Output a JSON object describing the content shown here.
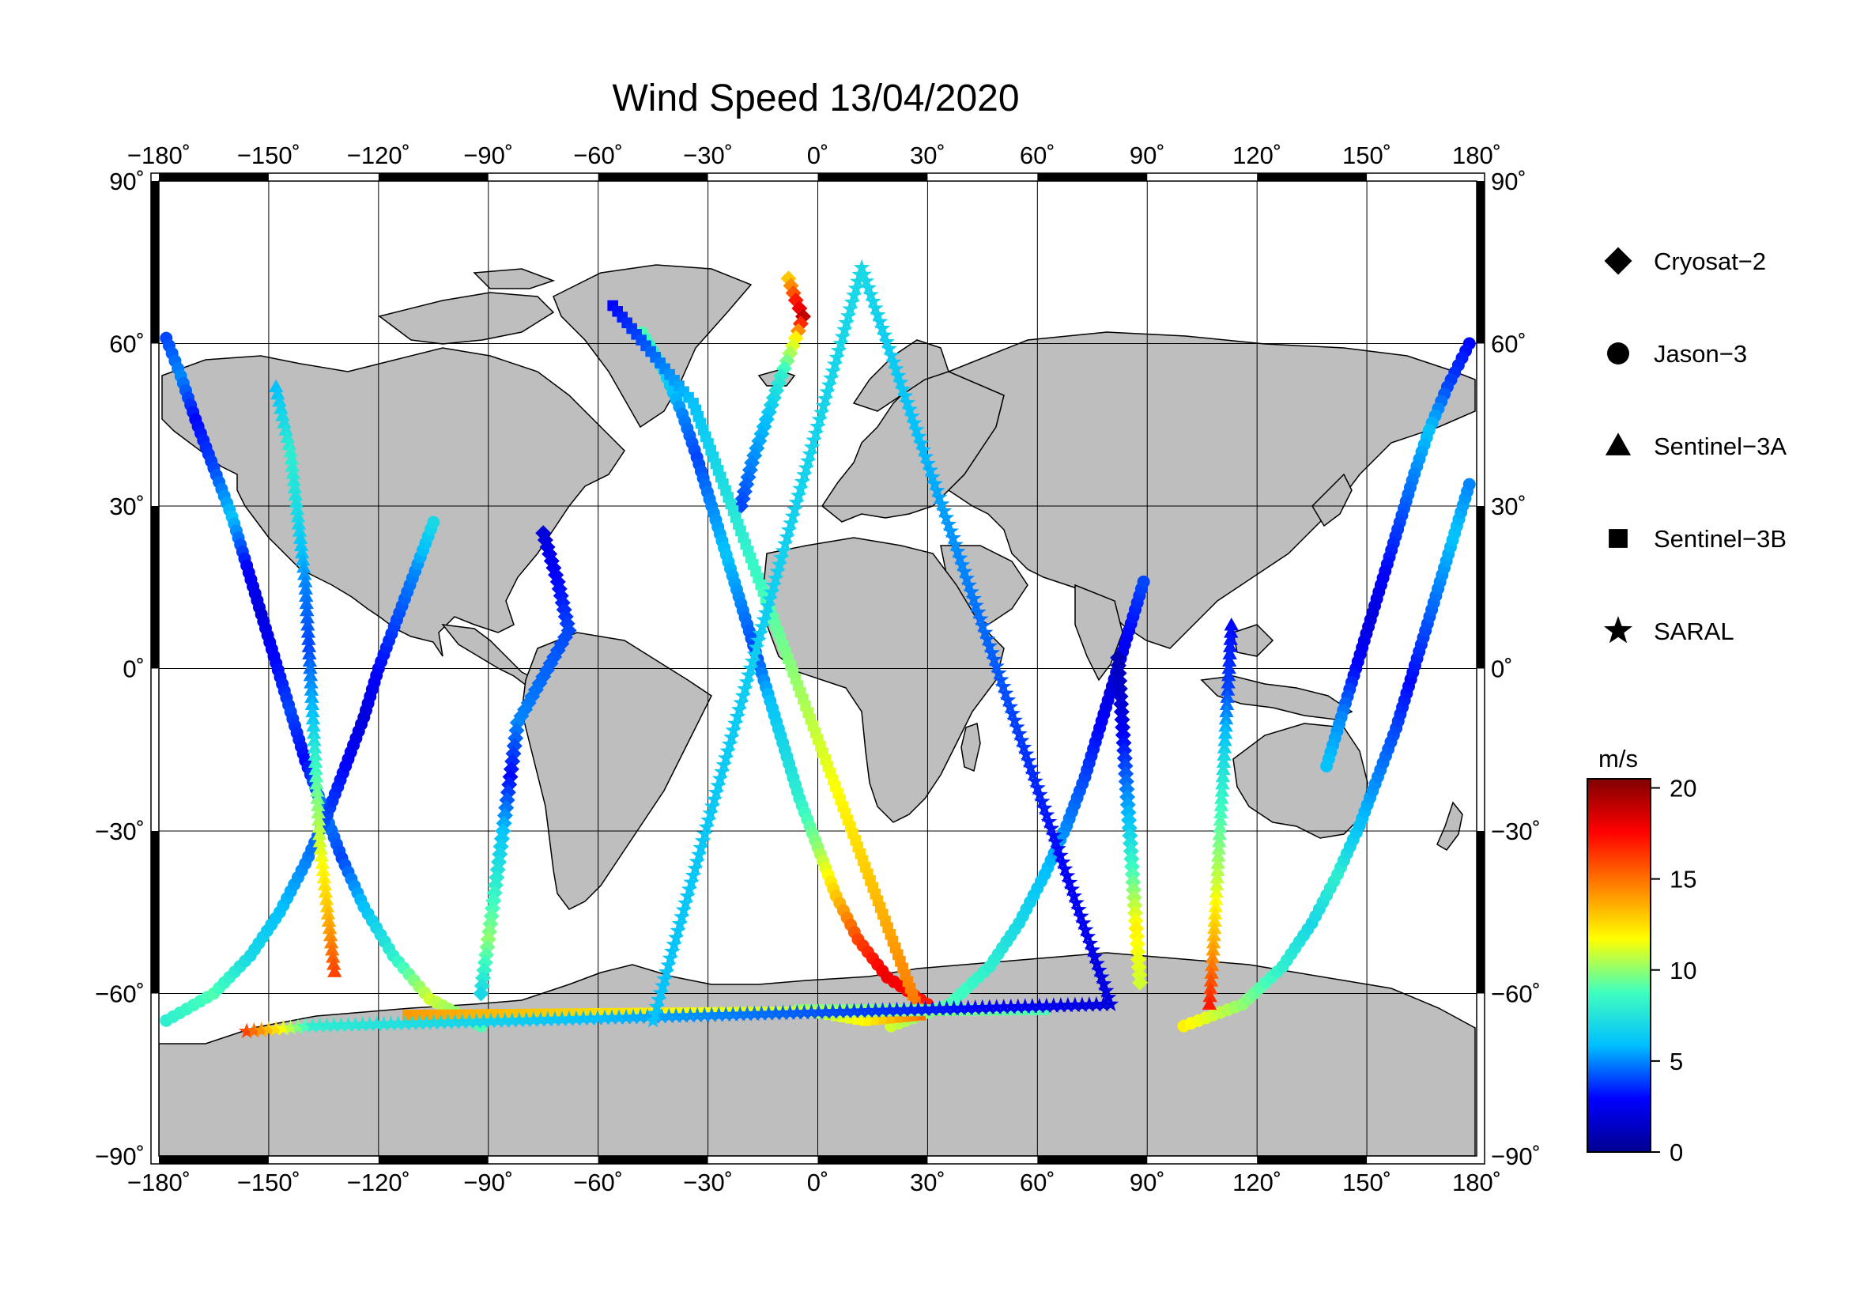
{
  "title": "Wind Speed 13/04/2020",
  "map": {
    "projection": "equirectangular",
    "lon_range": [
      -180,
      180
    ],
    "lat_range": [
      -90,
      90
    ],
    "lon_ticks": [
      -180,
      -150,
      -120,
      -90,
      -60,
      -30,
      0,
      30,
      60,
      90,
      120,
      150,
      180
    ],
    "lat_ticks": [
      90,
      60,
      30,
      0,
      -30,
      -60,
      -90
    ],
    "lon_tick_labels": [
      "−180˚",
      "−150˚",
      "−120˚",
      "−90˚",
      "−60˚",
      "−30˚",
      "0˚",
      "30˚",
      "60˚",
      "90˚",
      "120˚",
      "150˚",
      "180˚"
    ],
    "lat_tick_labels_left": [
      "90˚",
      "60˚",
      "30˚",
      "0˚",
      "−30˚",
      "−60˚",
      "−90˚"
    ],
    "lat_tick_labels_right": [
      "90˚",
      "60˚",
      "30˚",
      "0˚",
      "−30˚",
      "−60˚",
      "−90˚"
    ],
    "land_color": "#bebebe",
    "ocean_color": "#ffffff",
    "grid": true
  },
  "legend": {
    "items": [
      {
        "label": "Cryosat−2",
        "symbol": "diamond"
      },
      {
        "label": "Jason−3",
        "symbol": "circle"
      },
      {
        "label": "Sentinel−3A",
        "symbol": "triangle"
      },
      {
        "label": "Sentinel−3B",
        "symbol": "square"
      },
      {
        "label": "SARAL",
        "symbol": "star"
      }
    ]
  },
  "colorbar": {
    "unit": "m/s",
    "min": 0,
    "max": 20.5,
    "tick_values": [
      20,
      15,
      10,
      5,
      0
    ],
    "tick_labels": [
      "20",
      "15",
      "10",
      "5",
      "0"
    ],
    "colormap": [
      "#00008f",
      "#0000ff",
      "#00bfff",
      "#40ffbf",
      "#ffff00",
      "#ff8000",
      "#ff0000",
      "#800000"
    ]
  },
  "chart_data": {
    "type": "scatter",
    "variable": "Wind Speed",
    "units": "m/s",
    "tracks": [
      {
        "satellite": "Jason−3",
        "symbol": "circle",
        "points": [
          {
            "lon": -178,
            "lat": 61,
            "v": 4
          },
          {
            "lon": -174,
            "lat": 54,
            "v": 5
          },
          {
            "lon": -170,
            "lat": 46,
            "v": 3
          },
          {
            "lon": -165,
            "lat": 37,
            "v": 4
          },
          {
            "lon": -160,
            "lat": 28,
            "v": 6
          },
          {
            "lon": -156,
            "lat": 19,
            "v": 3
          },
          {
            "lon": -152,
            "lat": 10,
            "v": 2
          },
          {
            "lon": -148,
            "lat": 1,
            "v": 3
          },
          {
            "lon": -144,
            "lat": -8,
            "v": 4
          },
          {
            "lon": -140,
            "lat": -17,
            "v": 3
          },
          {
            "lon": -135,
            "lat": -26,
            "v": 5
          },
          {
            "lon": -130,
            "lat": -35,
            "v": 4
          },
          {
            "lon": -124,
            "lat": -44,
            "v": 6
          },
          {
            "lon": -116,
            "lat": -53,
            "v": 8
          },
          {
            "lon": -106,
            "lat": -61,
            "v": 11
          },
          {
            "lon": -92,
            "lat": -66,
            "v": 9
          }
        ]
      },
      {
        "satellite": "Jason−3",
        "symbol": "circle",
        "points": [
          {
            "lon": -178,
            "lat": -65,
            "v": 8
          },
          {
            "lon": -165,
            "lat": -60,
            "v": 9
          },
          {
            "lon": -155,
            "lat": -53,
            "v": 7
          },
          {
            "lon": -147,
            "lat": -45,
            "v": 6
          },
          {
            "lon": -140,
            "lat": -36,
            "v": 5
          },
          {
            "lon": -134,
            "lat": -27,
            "v": 4
          },
          {
            "lon": -129,
            "lat": -18,
            "v": 3
          },
          {
            "lon": -124,
            "lat": -9,
            "v": 2
          },
          {
            "lon": -120,
            "lat": 0,
            "v": 3
          },
          {
            "lon": -115,
            "lat": 9,
            "v": 4
          },
          {
            "lon": -110,
            "lat": 18,
            "v": 5
          },
          {
            "lon": -105,
            "lat": 27,
            "v": 7
          }
        ]
      },
      {
        "satellite": "Jason−3",
        "symbol": "circle",
        "points": [
          {
            "lon": -48,
            "lat": 62,
            "v": 9
          },
          {
            "lon": -42,
            "lat": 55,
            "v": 7
          },
          {
            "lon": -37,
            "lat": 47,
            "v": 5
          },
          {
            "lon": -33,
            "lat": 39,
            "v": 4
          },
          {
            "lon": -29,
            "lat": 30,
            "v": 5
          },
          {
            "lon": -25,
            "lat": 21,
            "v": 6
          },
          {
            "lon": -21,
            "lat": 12,
            "v": 5
          },
          {
            "lon": -17,
            "lat": 3,
            "v": 4
          },
          {
            "lon": -13,
            "lat": -6,
            "v": 6
          },
          {
            "lon": -9,
            "lat": -15,
            "v": 7
          },
          {
            "lon": -5,
            "lat": -24,
            "v": 8
          },
          {
            "lon": 0,
            "lat": -33,
            "v": 10
          },
          {
            "lon": 5,
            "lat": -42,
            "v": 13
          },
          {
            "lon": 11,
            "lat": -50,
            "v": 16
          },
          {
            "lon": 19,
            "lat": -57,
            "v": 18
          },
          {
            "lon": 30,
            "lat": -62,
            "v": 17
          }
        ]
      },
      {
        "satellite": "Jason−3",
        "symbol": "circle",
        "points": [
          {
            "lon": 20,
            "lat": -66,
            "v": 11
          },
          {
            "lon": 36,
            "lat": -62,
            "v": 9
          },
          {
            "lon": 47,
            "lat": -55,
            "v": 8
          },
          {
            "lon": 55,
            "lat": -47,
            "v": 7
          },
          {
            "lon": 62,
            "lat": -38,
            "v": 6
          },
          {
            "lon": 68,
            "lat": -29,
            "v": 5
          },
          {
            "lon": 73,
            "lat": -20,
            "v": 4
          },
          {
            "lon": 77,
            "lat": -11,
            "v": 3
          },
          {
            "lon": 81,
            "lat": -2,
            "v": 2
          },
          {
            "lon": 85,
            "lat": 7,
            "v": 3
          },
          {
            "lon": 89,
            "lat": 16,
            "v": 4
          }
        ]
      },
      {
        "satellite": "Jason−3",
        "symbol": "circle",
        "points": [
          {
            "lon": 100,
            "lat": -66,
            "v": 12
          },
          {
            "lon": 116,
            "lat": -62,
            "v": 10
          },
          {
            "lon": 127,
            "lat": -55,
            "v": 8
          },
          {
            "lon": 135,
            "lat": -47,
            "v": 7
          },
          {
            "lon": 142,
            "lat": -38,
            "v": 8
          },
          {
            "lon": 148,
            "lat": -29,
            "v": 6
          },
          {
            "lon": 153,
            "lat": -20,
            "v": 5
          },
          {
            "lon": 158,
            "lat": -11,
            "v": 4
          },
          {
            "lon": 162,
            "lat": -2,
            "v": 3
          },
          {
            "lon": 166,
            "lat": 7,
            "v": 4
          },
          {
            "lon": 170,
            "lat": 16,
            "v": 5
          },
          {
            "lon": 174,
            "lat": 25,
            "v": 6
          },
          {
            "lon": 178,
            "lat": 34,
            "v": 5
          }
        ]
      },
      {
        "satellite": "Jason−3",
        "symbol": "circle",
        "points": [
          {
            "lon": 178,
            "lat": 60,
            "v": 3
          },
          {
            "lon": 172,
            "lat": 52,
            "v": 4
          },
          {
            "lon": 167,
            "lat": 44,
            "v": 6
          },
          {
            "lon": 163,
            "lat": 36,
            "v": 5
          },
          {
            "lon": 159,
            "lat": 27,
            "v": 4
          },
          {
            "lon": 155,
            "lat": 18,
            "v": 3
          },
          {
            "lon": 151,
            "lat": 9,
            "v": 2
          },
          {
            "lon": 147,
            "lat": 0,
            "v": 3
          },
          {
            "lon": 143,
            "lat": -9,
            "v": 5
          },
          {
            "lon": 139,
            "lat": -18,
            "v": 6
          }
        ]
      },
      {
        "satellite": "Cryosat−2",
        "symbol": "diamond",
        "points": [
          {
            "lon": -8,
            "lat": 72,
            "v": 13
          },
          {
            "lon": -6,
            "lat": 68,
            "v": 17
          },
          {
            "lon": -4,
            "lat": 65,
            "v": 19
          },
          {
            "lon": -6,
            "lat": 61,
            "v": 12
          },
          {
            "lon": -10,
            "lat": 54,
            "v": 8
          },
          {
            "lon": -14,
            "lat": 46,
            "v": 6
          },
          {
            "lon": -18,
            "lat": 38,
            "v": 5
          },
          {
            "lon": -21,
            "lat": 30,
            "v": 4
          }
        ]
      },
      {
        "satellite": "Cryosat−2",
        "symbol": "diamond",
        "points": [
          {
            "lon": -75,
            "lat": 25,
            "v": 2
          },
          {
            "lon": -71,
            "lat": 16,
            "v": 3
          },
          {
            "lon": -68,
            "lat": 7,
            "v": 4
          },
          {
            "lon": -82,
            "lat": -10,
            "v": 5
          },
          {
            "lon": -84,
            "lat": -20,
            "v": 3
          },
          {
            "lon": -86,
            "lat": -30,
            "v": 6
          },
          {
            "lon": -88,
            "lat": -40,
            "v": 8
          },
          {
            "lon": -90,
            "lat": -50,
            "v": 10
          },
          {
            "lon": -92,
            "lat": -60,
            "v": 7
          }
        ]
      },
      {
        "satellite": "Cryosat−2",
        "symbol": "diamond",
        "points": [
          {
            "lon": 82,
            "lat": 2,
            "v": 1
          },
          {
            "lon": 83,
            "lat": -8,
            "v": 2
          },
          {
            "lon": 84,
            "lat": -18,
            "v": 4
          },
          {
            "lon": 85,
            "lat": -28,
            "v": 6
          },
          {
            "lon": 86,
            "lat": -38,
            "v": 9
          },
          {
            "lon": 87,
            "lat": -48,
            "v": 12
          },
          {
            "lon": 88,
            "lat": -58,
            "v": 11
          }
        ]
      },
      {
        "satellite": "Sentinel−3A",
        "symbol": "triangle",
        "points": [
          {
            "lon": -148,
            "lat": 52,
            "v": 6
          },
          {
            "lon": -144,
            "lat": 40,
            "v": 8
          },
          {
            "lon": -142,
            "lat": 28,
            "v": 7
          },
          {
            "lon": -140,
            "lat": 16,
            "v": 5
          },
          {
            "lon": -139,
            "lat": 4,
            "v": 4
          },
          {
            "lon": -138,
            "lat": -8,
            "v": 6
          },
          {
            "lon": -137,
            "lat": -20,
            "v": 9
          },
          {
            "lon": -136,
            "lat": -32,
            "v": 11
          },
          {
            "lon": -134,
            "lat": -44,
            "v": 13
          },
          {
            "lon": -132,
            "lat": -56,
            "v": 16
          }
        ]
      },
      {
        "satellite": "Sentinel−3A",
        "symbol": "triangle",
        "points": [
          {
            "lon": 113,
            "lat": 8,
            "v": 3
          },
          {
            "lon": 112,
            "lat": -4,
            "v": 4
          },
          {
            "lon": 111,
            "lat": -16,
            "v": 7
          },
          {
            "lon": 110,
            "lat": -28,
            "v": 9
          },
          {
            "lon": 109,
            "lat": -40,
            "v": 11
          },
          {
            "lon": 108,
            "lat": -52,
            "v": 14
          },
          {
            "lon": 107,
            "lat": -62,
            "v": 17
          }
        ]
      },
      {
        "satellite": "Sentinel−3B",
        "symbol": "square",
        "points": [
          {
            "lon": -56,
            "lat": 67,
            "v": 3
          },
          {
            "lon": -34,
            "lat": 49,
            "v": 6
          },
          {
            "lon": 28,
            "lat": -64,
            "v": 15
          },
          {
            "lon": 13,
            "lat": -65,
            "v": 12
          },
          {
            "lon": -5,
            "lat": -63,
            "v": 10
          },
          {
            "lon": 62,
            "lat": -63,
            "v": 9
          },
          {
            "lon": -112,
            "lat": -64,
            "v": 14
          }
        ]
      },
      {
        "satellite": "SARAL",
        "symbol": "star",
        "points": [
          {
            "lon": -156,
            "lat": -67,
            "v": 16
          },
          {
            "lon": -138,
            "lat": -66,
            "v": 8
          },
          {
            "lon": 80,
            "lat": -62,
            "v": 2
          },
          {
            "lon": 12,
            "lat": 74,
            "v": 7
          },
          {
            "lon": -45,
            "lat": -65,
            "v": 6
          }
        ]
      }
    ]
  }
}
